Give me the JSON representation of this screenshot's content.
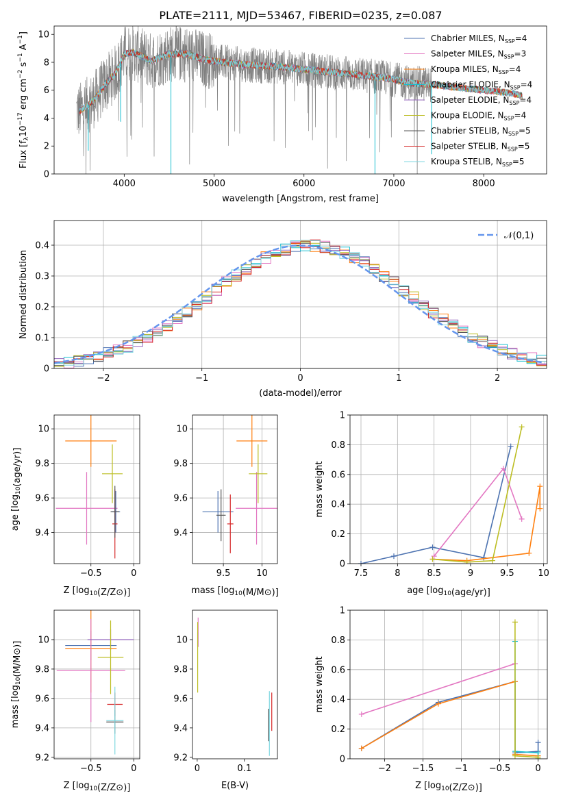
{
  "figure_title": "PLATE=2111, MJD=53467, FIBERID=0235, z=0.087",
  "colors": {
    "Chabrier MILES": "#4c72b0",
    "Salpeter MILES": "#e377c2",
    "Kroupa MILES": "#ff7f0e",
    "Chabrier ELODIE": "#17becf",
    "Salpeter ELODIE": "#9467bd",
    "Kroupa ELODIE": "#bcbd22",
    "Chabrier STELIB": "#555555",
    "Salpeter STELIB": "#d62728",
    "Kroupa STELIB": "#7fd7e0",
    "data": "#808080",
    "normal": "#6495ed"
  },
  "chart_data": [
    {
      "type": "line",
      "title": "",
      "xlabel": "wavelength [Angstrom, rest frame]",
      "ylabel": "Flux [f_λ 10^-17 erg cm^-2 s^-1 A^-1]",
      "xlim": [
        3220,
        8700
      ],
      "ylim": [
        0,
        10.6
      ],
      "xticks": [
        4000,
        5000,
        6000,
        7000,
        8000
      ],
      "yticks": [
        0,
        2,
        4,
        6,
        8,
        10
      ],
      "grid": false,
      "legend_position": "top-right",
      "legend": [
        {
          "name": "Chabrier MILES",
          "nssp": "4"
        },
        {
          "name": "Salpeter MILES",
          "nssp": "3"
        },
        {
          "name": "Kroupa MILES",
          "nssp": "4"
        },
        {
          "name": "Chabrier ELODIE",
          "nssp": "4"
        },
        {
          "name": "Salpeter ELODIE",
          "nssp": "4"
        },
        {
          "name": "Kroupa ELODIE",
          "nssp": "4"
        },
        {
          "name": "Chabrier STELIB",
          "nssp": "5"
        },
        {
          "name": "Salpeter STELIB",
          "nssp": "5"
        },
        {
          "name": "Kroupa STELIB",
          "nssp": "5"
        }
      ],
      "model_continuum": {
        "x": [
          3500,
          3650,
          3800,
          3900,
          4000,
          4100,
          4200,
          4300,
          4500,
          4700,
          4900,
          5100,
          5400,
          5700,
          6000,
          6300,
          6600,
          6900,
          7200,
          7450,
          7700,
          8000,
          8300,
          8430
        ],
        "y": [
          4.5,
          5.2,
          6.5,
          7.2,
          8.6,
          8.7,
          8.4,
          8.1,
          8.6,
          8.6,
          8.2,
          8.0,
          7.8,
          7.7,
          7.5,
          7.3,
          7.1,
          6.9,
          6.5,
          6.4,
          6.2,
          6.0,
          5.8,
          5.6
        ]
      },
      "data_range": [
        3470,
        7420
      ],
      "data_noise": 1.6
    },
    {
      "type": "bar",
      "title": "",
      "xlabel": "(data-model)/error",
      "ylabel": "Normed distribution",
      "xlim": [
        -2.5,
        2.5
      ],
      "ylim": [
        0,
        0.48
      ],
      "xticks": [
        -2,
        -1,
        0,
        1,
        2
      ],
      "yticks": [
        0.0,
        0.1,
        0.2,
        0.3,
        0.4
      ],
      "grid": true,
      "legend_position": "top-right",
      "legend": [
        {
          "name": "𝒩(0,1)"
        }
      ],
      "bin_edges": [
        -2.5,
        2.5
      ],
      "bin_width": 0.1,
      "noise": 0.02
    },
    {
      "type": "scatter",
      "title": "",
      "xlabel": "Z [log10(Z/Z⊙)]",
      "ylabel": "age [log10(age/yr)]",
      "xlim": [
        -0.93,
        0.07
      ],
      "ylim": [
        9.22,
        10.08
      ],
      "xticks": [
        -0.5,
        0.0
      ],
      "yticks": [
        9.4,
        9.6,
        9.8,
        10.0
      ],
      "grid": true,
      "points": [
        {
          "s": "Kroupa MILES",
          "x": -0.5,
          "y": 9.93,
          "xe": 0.3,
          "ye": 0.15
        },
        {
          "s": "Salpeter MILES",
          "x": -0.55,
          "y": 9.54,
          "xe": 0.36,
          "ye": 0.21
        },
        {
          "s": "Kroupa ELODIE",
          "x": -0.25,
          "y": 9.74,
          "xe": 0.12,
          "ye": 0.17
        },
        {
          "s": "Chabrier MILES",
          "x": -0.21,
          "y": 9.52,
          "xe": 0.05,
          "ye": 0.12
        },
        {
          "s": "Salpeter STELIB",
          "x": -0.22,
          "y": 9.45,
          "xe": 0.03,
          "ye": 0.2
        },
        {
          "s": "Chabrier STELIB",
          "x": -0.22,
          "y": 9.52,
          "xe": 0.05,
          "ye": 0.15
        }
      ]
    },
    {
      "type": "scatter",
      "title": "",
      "xlabel": "mass [log10(M/M⊙)]",
      "ylabel": "",
      "xlim": [
        9.1,
        10.2
      ],
      "ylim": [
        9.22,
        10.08
      ],
      "xticks": [
        9.5,
        10.0
      ],
      "yticks": [
        9.4,
        9.6,
        9.8,
        10.0
      ],
      "grid": true,
      "points": [
        {
          "s": "Kroupa MILES",
          "x": 9.87,
          "y": 9.93,
          "xe": 0.2,
          "ye": 0.15
        },
        {
          "s": "Salpeter MILES",
          "x": 9.93,
          "y": 9.54,
          "xe": 0.27,
          "ye": 0.21
        },
        {
          "s": "Kroupa ELODIE",
          "x": 9.95,
          "y": 9.74,
          "xe": 0.12,
          "ye": 0.17
        },
        {
          "s": "Chabrier MILES",
          "x": 9.43,
          "y": 9.52,
          "xe": 0.2,
          "ye": 0.12
        },
        {
          "s": "Salpeter STELIB",
          "x": 9.59,
          "y": 9.45,
          "xe": 0.04,
          "ye": 0.17
        },
        {
          "s": "Chabrier STELIB",
          "x": 9.47,
          "y": 9.5,
          "xe": 0.06,
          "ye": 0.15
        }
      ]
    },
    {
      "type": "line",
      "title": "",
      "xlabel": "age [log10(age/yr)]",
      "ylabel": "mass weight",
      "xlim": [
        7.35,
        10.05
      ],
      "ylim": [
        0.0,
        1.0
      ],
      "xticks": [
        7.5,
        8.0,
        8.5,
        9.0,
        9.5,
        10.0
      ],
      "yticks": [
        0.0,
        0.2,
        0.4,
        0.6,
        0.8,
        1.0
      ],
      "grid": true,
      "series": [
        {
          "s": "Chabrier MILES",
          "x": [
            7.5,
            7.95,
            8.48,
            9.18,
            9.55
          ],
          "y": [
            0.0,
            0.05,
            0.11,
            0.04,
            0.79
          ]
        },
        {
          "s": "Kroupa MILES",
          "x": [
            8.48,
            8.95,
            9.8,
            9.95,
            9.95
          ],
          "y": [
            0.03,
            0.02,
            0.07,
            0.52,
            0.37
          ]
        },
        {
          "s": "Salpeter MILES",
          "x": [
            8.5,
            9.45,
            9.7
          ],
          "y": [
            0.05,
            0.64,
            0.3
          ]
        },
        {
          "s": "Kroupa ELODIE",
          "x": [
            8.48,
            8.95,
            9.3,
            9.7
          ],
          "y": [
            0.03,
            0.01,
            0.02,
            0.92
          ]
        }
      ]
    },
    {
      "type": "scatter",
      "title": "",
      "xlabel": "Z [log10(Z/Z⊙)]",
      "ylabel": "mass [log10(M/M⊙)]",
      "xlim": [
        -0.93,
        0.07
      ],
      "ylim": [
        9.19,
        10.2
      ],
      "xticks": [
        -0.5,
        0.0
      ],
      "yticks": [
        9.2,
        9.4,
        9.6,
        9.8,
        10.0
      ],
      "grid": true,
      "points": [
        {
          "s": "Chabrier MILES",
          "x": -0.5,
          "y": 9.96,
          "xe": 0.3,
          "ye": 0.1
        },
        {
          "s": "Kroupa MILES",
          "x": -0.5,
          "y": 9.94,
          "xe": 0.3,
          "ye": 0.3
        },
        {
          "s": "Salpeter MILES",
          "x": -0.5,
          "y": 9.79,
          "xe": 0.4,
          "ye": 0.35
        },
        {
          "s": "Salpeter ELODIE",
          "x": -0.27,
          "y": 10.0,
          "xe": 0.27,
          "ye": 0.07
        },
        {
          "s": "Kroupa ELODIE",
          "x": -0.27,
          "y": 9.88,
          "xe": 0.15,
          "ye": 0.25
        },
        {
          "s": "Salpeter STELIB",
          "x": -0.22,
          "y": 9.56,
          "xe": 0.09,
          "ye": 0.08
        },
        {
          "s": "Chabrier STELIB",
          "x": -0.22,
          "y": 9.44,
          "xe": 0.1,
          "ye": 0.08
        },
        {
          "s": "Kroupa STELIB",
          "x": -0.22,
          "y": 9.45,
          "xe": 0.1,
          "ye": 0.23
        }
      ]
    },
    {
      "type": "scatter",
      "title": "",
      "xlabel": "E(B-V)",
      "ylabel": "",
      "xlim": [
        -0.01,
        0.17
      ],
      "ylim": [
        9.19,
        10.2
      ],
      "xticks": [
        0.0,
        0.1
      ],
      "yticks": [
        9.2,
        9.4,
        9.6,
        9.8,
        10.0
      ],
      "grid": false,
      "points": [
        {
          "s": "Salpeter MILES",
          "x": 0.002,
          "y": 10.05,
          "xe": 0,
          "ye": 0.1
        },
        {
          "s": "Salpeter ELODIE",
          "x": 0.001,
          "y": 10.0,
          "xe": 0,
          "ye": 0.05
        },
        {
          "s": "Kroupa ELODIE",
          "x": 0.001,
          "y": 9.88,
          "xe": 0,
          "ye": 0.24
        },
        {
          "s": "Salpeter STELIB",
          "x": 0.158,
          "y": 9.51,
          "xe": 0,
          "ye": 0.13
        },
        {
          "s": "Chabrier STELIB",
          "x": 0.151,
          "y": 9.42,
          "xe": 0,
          "ye": 0.11
        },
        {
          "s": "Kroupa STELIB",
          "x": 0.153,
          "y": 9.43,
          "xe": 0,
          "ye": 0.22
        }
      ]
    },
    {
      "type": "line",
      "title": "",
      "xlabel": "Z [log10(Z/Z⊙)]",
      "ylabel": "mass weight",
      "xlim": [
        -2.45,
        0.12
      ],
      "ylim": [
        0.0,
        1.0
      ],
      "xticks": [
        -2.0,
        -1.5,
        -1.0,
        -0.5,
        0.0
      ],
      "yticks": [
        0.0,
        0.2,
        0.4,
        0.6,
        0.8,
        1.0
      ],
      "grid": true,
      "series": [
        {
          "s": "Salpeter MILES",
          "x": [
            -2.3,
            -0.3
          ],
          "y": [
            0.3,
            0.64
          ]
        },
        {
          "s": "Chabrier MILES",
          "x": [
            -2.3,
            -1.3,
            -0.3,
            -0.3,
            0.0,
            0.0
          ],
          "y": [
            0.07,
            0.38,
            0.52,
            0.04,
            0.05,
            0.11
          ]
        },
        {
          "s": "Kroupa MILES",
          "x": [
            -2.3,
            -1.3,
            -0.3,
            -0.3,
            0.0
          ],
          "y": [
            0.07,
            0.37,
            0.52,
            0.03,
            0.02
          ]
        },
        {
          "s": "Chabrier ELODIE",
          "x": [
            -0.3,
            -0.3,
            0.0,
            0.0
          ],
          "y": [
            0.79,
            0.05,
            0.04,
            0.0
          ]
        },
        {
          "s": "Kroupa ELODIE",
          "x": [
            -0.3,
            -0.3,
            0.0,
            0.0
          ],
          "y": [
            0.92,
            0.02,
            0.01,
            0.0
          ]
        }
      ]
    }
  ]
}
